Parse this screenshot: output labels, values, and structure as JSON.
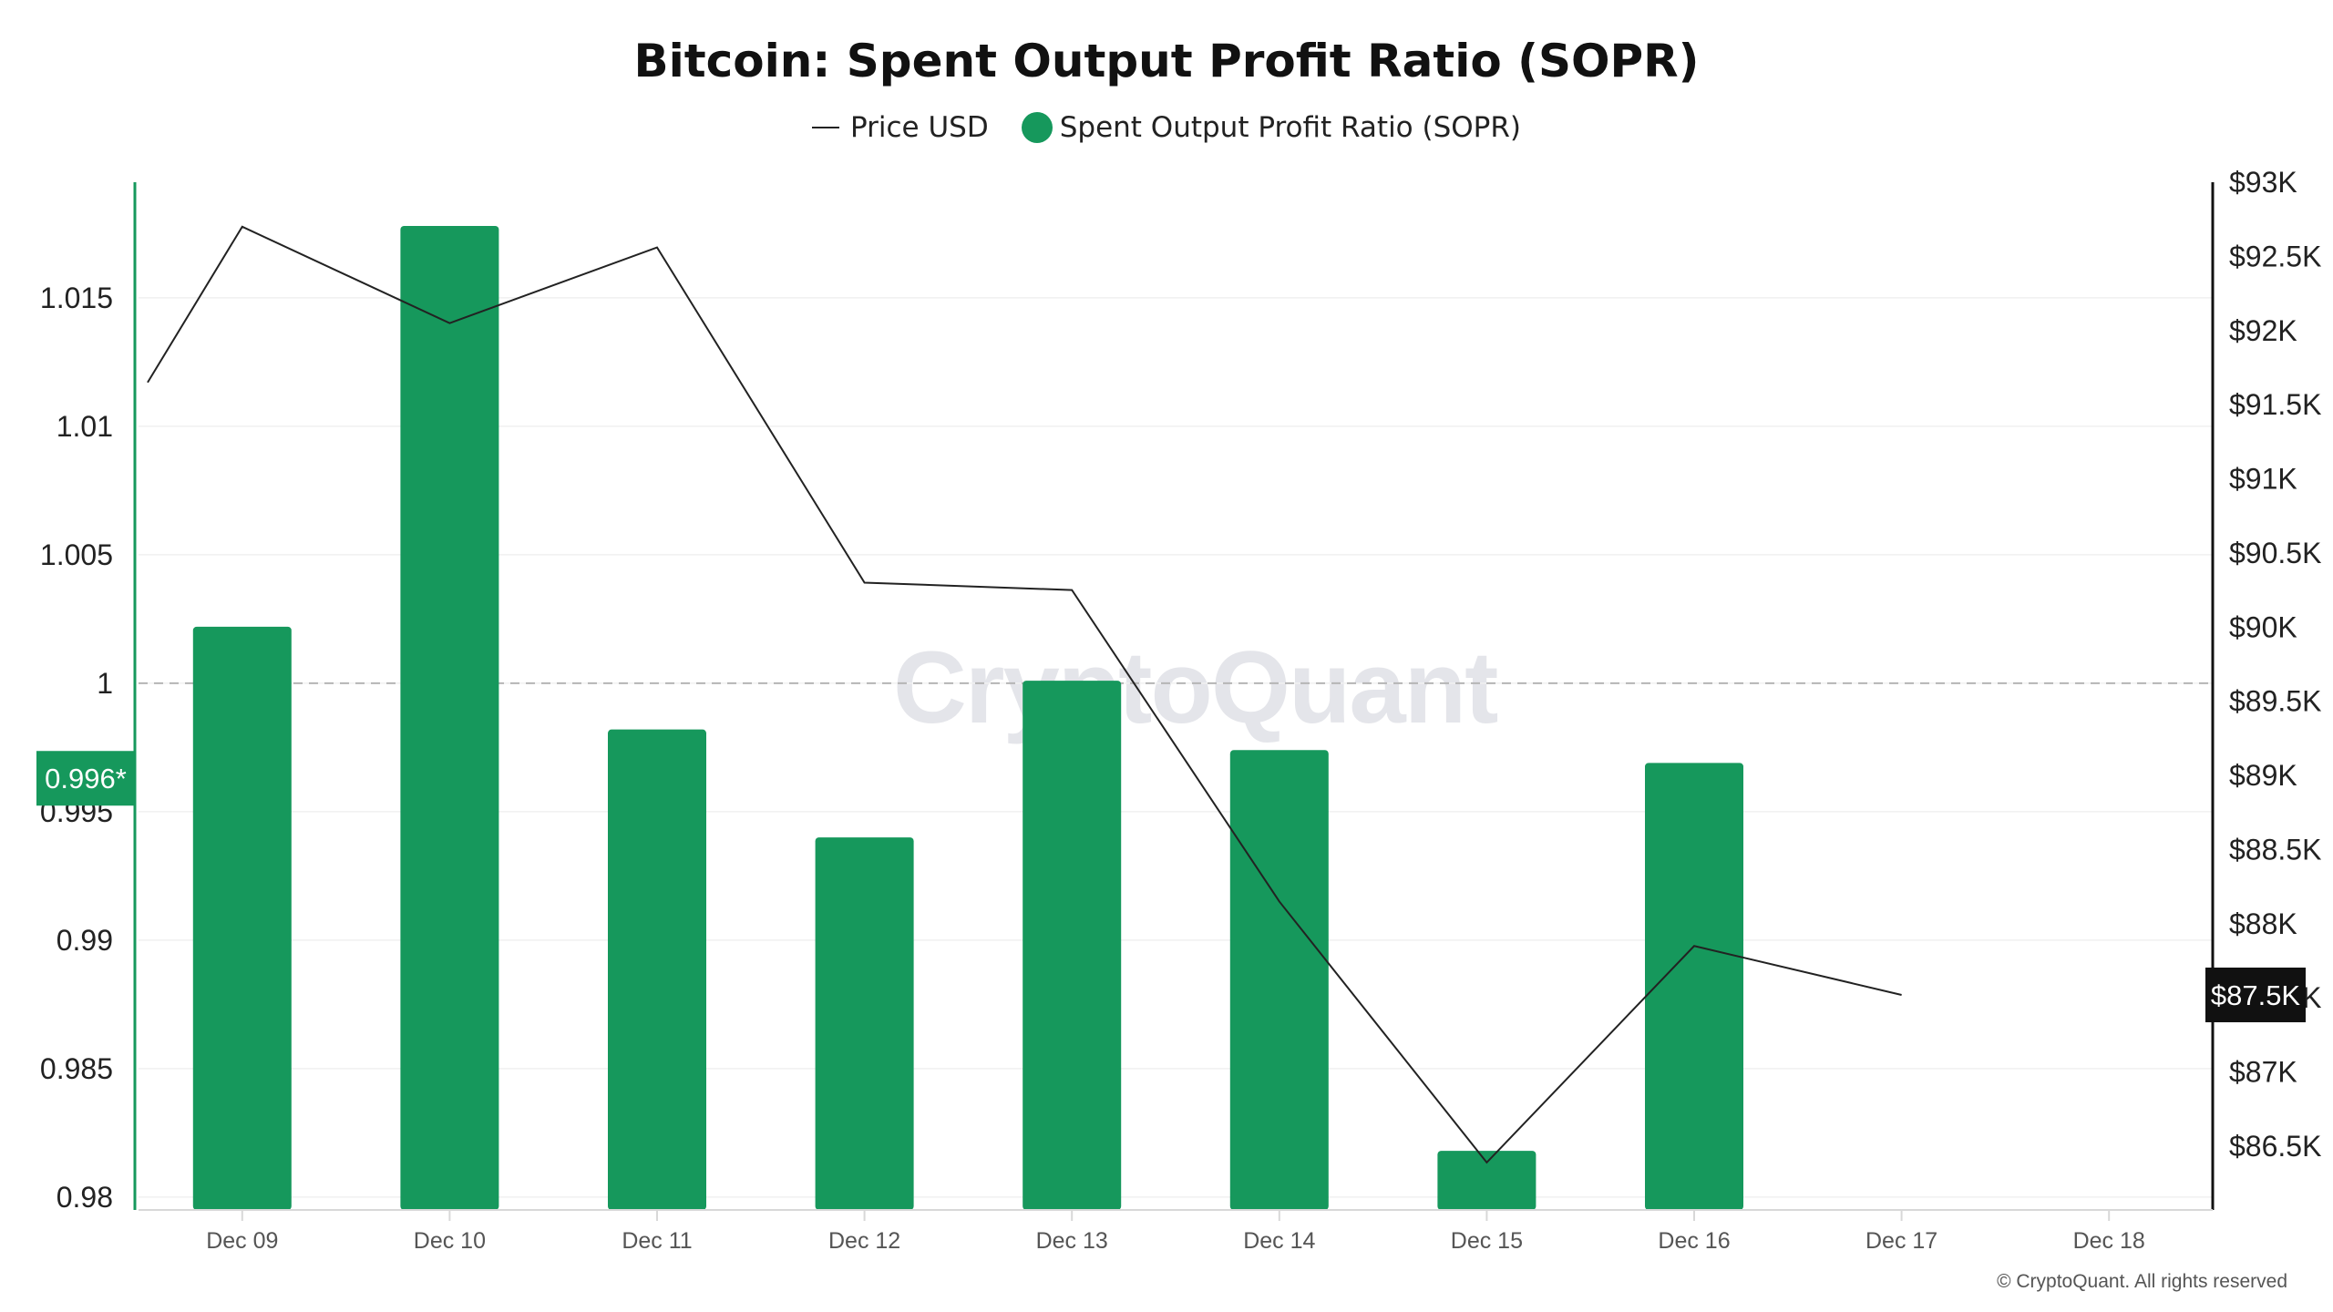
{
  "title": "Bitcoin: Spent Output Profit Ratio (SOPR)",
  "legend": {
    "price_label": "Price USD",
    "sopr_label": "Spent Output Profit Ratio (SOPR)"
  },
  "watermark": "CryptoQuant",
  "copyright": "© CryptoQuant. All rights reserved",
  "colors": {
    "bar": "#16985c",
    "price_line": "#222222",
    "reference_line": "#b5b5b5",
    "price_tag_bg": "#111111",
    "grid": "#f0f0f0"
  },
  "chart_data": {
    "type": "bar",
    "categories": [
      "Dec 09",
      "Dec 10",
      "Dec 11",
      "Dec 12",
      "Dec 13",
      "Dec 14",
      "Dec 15",
      "Dec 16",
      "Dec 17",
      "Dec 18"
    ],
    "series": [
      {
        "name": "Spent Output Profit Ratio (SOPR)",
        "type": "bar",
        "axis": "left",
        "values": [
          1.0022,
          1.0178,
          0.9982,
          0.994,
          1.0001,
          0.9974,
          0.9818,
          0.9969,
          null,
          null
        ]
      },
      {
        "name": "Price USD",
        "type": "line",
        "axis": "right",
        "values": [
          91650,
          92700,
          92050,
          92560,
          90300,
          90250,
          88150,
          86390,
          87850,
          87520
        ]
      }
    ],
    "left_axis": {
      "ticks": [
        0.98,
        0.985,
        0.99,
        0.995,
        1,
        1.005,
        1.01,
        1.015
      ],
      "tick_labels": [
        "0.98",
        "0.985",
        "0.99",
        "0.995",
        "1",
        "1.005",
        "1.01",
        "1.015"
      ],
      "ylim": [
        0.9795,
        1.0195
      ]
    },
    "right_axis": {
      "ticks": [
        86500,
        87000,
        87500,
        88000,
        88500,
        89000,
        89500,
        90000,
        90500,
        91000,
        91500,
        92000,
        92500,
        93000
      ],
      "tick_labels": [
        "$86.5K",
        "$87K",
        "$87.5K",
        "$88K",
        "$88.5K",
        "$89K",
        "$89.5K",
        "$90K",
        "$90.5K",
        "$91K",
        "$91.5K",
        "$92K",
        "$92.5K",
        "$93K"
      ],
      "ylim": [
        86070,
        93000
      ]
    },
    "reference_line": {
      "axis": "left",
      "value": 1
    },
    "current_value_left": {
      "label": "0.996*",
      "value": 0.9963
    },
    "current_value_right": {
      "label": "$87.5K",
      "value": 87520
    },
    "grid": true,
    "legend_position": "top-center"
  }
}
